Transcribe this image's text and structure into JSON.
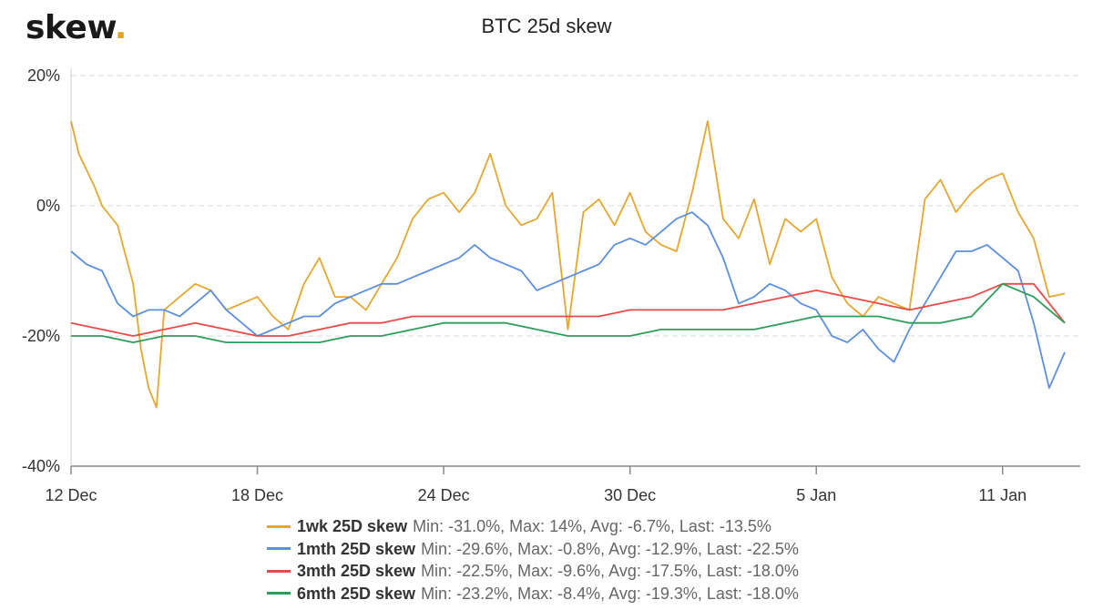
{
  "logo": {
    "text": "skew",
    "dot": "."
  },
  "chart_data": {
    "type": "line",
    "title": "BTC 25d skew",
    "xlabel": "",
    "ylabel": "",
    "ylim": [
      -40,
      20
    ],
    "yticks": [
      20,
      0,
      -20,
      -40
    ],
    "ytick_labels": [
      "20%",
      "0%",
      "-20%",
      "-40%"
    ],
    "x_start": "2019-12-12",
    "x_end": "2020-01-13",
    "xticks": [
      "2019-12-12",
      "2019-12-18",
      "2019-12-24",
      "2019-12-30",
      "2020-01-05",
      "2020-01-11"
    ],
    "xtick_labels": [
      "12 Dec",
      "18 Dec",
      "24 Dec",
      "30 Dec",
      "5 Jan",
      "11 Jan"
    ],
    "grid": "horizontal dashed",
    "legend_position": "bottom",
    "series": [
      {
        "name": "1wk 25D skew",
        "color": "#e5a72e",
        "stats": "Min: -31.0%, Max: 14%, Avg: -6.7%, Last: -13.5%",
        "x": [
          "2019-12-12",
          "2019-12-12T06",
          "2019-12-12T18",
          "2019-12-13",
          "2019-12-13T12",
          "2019-12-14",
          "2019-12-14T06",
          "2019-12-14T12",
          "2019-12-14T18",
          "2019-12-15",
          "2019-12-15T12",
          "2019-12-16",
          "2019-12-16T12",
          "2019-12-17",
          "2019-12-17T12",
          "2019-12-18",
          "2019-12-18T12",
          "2019-12-19",
          "2019-12-19T12",
          "2019-12-20",
          "2019-12-20T12",
          "2019-12-21",
          "2019-12-21T12",
          "2019-12-22",
          "2019-12-22T12",
          "2019-12-23",
          "2019-12-23T12",
          "2019-12-24",
          "2019-12-24T12",
          "2019-12-25",
          "2019-12-25T12",
          "2019-12-26",
          "2019-12-26T12",
          "2019-12-27",
          "2019-12-27T12",
          "2019-12-28",
          "2019-12-28T12",
          "2019-12-29",
          "2019-12-29T12",
          "2019-12-30",
          "2019-12-30T12",
          "2019-12-31",
          "2019-12-31T12",
          "2020-01-01",
          "2020-01-01T12",
          "2020-01-02",
          "2020-01-02T12",
          "2020-01-03",
          "2020-01-03T12",
          "2020-01-04",
          "2020-01-04T12",
          "2020-01-05",
          "2020-01-05T12",
          "2020-01-06",
          "2020-01-06T12",
          "2020-01-07",
          "2020-01-07T12",
          "2020-01-08",
          "2020-01-08T12",
          "2020-01-09",
          "2020-01-09T12",
          "2020-01-10",
          "2020-01-10T12",
          "2020-01-11",
          "2020-01-11T12",
          "2020-01-12",
          "2020-01-12T12",
          "2020-01-13"
        ],
        "values": [
          13,
          8,
          3,
          0,
          -3,
          -12,
          -22,
          -28,
          -31,
          -16,
          -14,
          -12,
          -13,
          -16,
          -15,
          -14,
          -17,
          -19,
          -12,
          -8,
          -14,
          -14,
          -16,
          -12,
          -8,
          -2,
          1,
          2,
          -1,
          2,
          8,
          0,
          -3,
          -2,
          2,
          -19,
          -1,
          1,
          -3,
          2,
          -4,
          -6,
          -7,
          2,
          13,
          -2,
          -5,
          1,
          -9,
          -2,
          -4,
          -2,
          -11,
          -15,
          -17,
          -14,
          -15,
          -16,
          1,
          4,
          -1,
          2,
          4,
          5,
          -1,
          -5,
          -14,
          -13.5
        ]
      },
      {
        "name": "1mth 25D skew",
        "color": "#5b8fe0",
        "stats": "Min: -29.6%, Max: -0.8%, Avg: -12.9%, Last: -22.5%",
        "x": [
          "2019-12-12",
          "2019-12-12T12",
          "2019-12-13",
          "2019-12-13T12",
          "2019-12-14",
          "2019-12-14T12",
          "2019-12-15",
          "2019-12-15T12",
          "2019-12-16",
          "2019-12-16T12",
          "2019-12-17",
          "2019-12-17T12",
          "2019-12-18",
          "2019-12-18T12",
          "2019-12-19",
          "2019-12-19T12",
          "2019-12-20",
          "2019-12-20T12",
          "2019-12-21",
          "2019-12-21T12",
          "2019-12-22",
          "2019-12-22T12",
          "2019-12-23",
          "2019-12-23T12",
          "2019-12-24",
          "2019-12-24T12",
          "2019-12-25",
          "2019-12-25T12",
          "2019-12-26",
          "2019-12-26T12",
          "2019-12-27",
          "2019-12-27T12",
          "2019-12-28",
          "2019-12-28T12",
          "2019-12-29",
          "2019-12-29T12",
          "2019-12-30",
          "2019-12-30T12",
          "2019-12-31",
          "2019-12-31T12",
          "2020-01-01",
          "2020-01-01T12",
          "2020-01-02",
          "2020-01-02T12",
          "2020-01-03",
          "2020-01-03T12",
          "2020-01-04",
          "2020-01-04T12",
          "2020-01-05",
          "2020-01-05T12",
          "2020-01-06",
          "2020-01-06T12",
          "2020-01-07",
          "2020-01-07T12",
          "2020-01-08",
          "2020-01-08T12",
          "2020-01-09",
          "2020-01-09T12",
          "2020-01-10",
          "2020-01-10T12",
          "2020-01-11",
          "2020-01-11T12",
          "2020-01-12",
          "2020-01-12T12",
          "2020-01-13"
        ],
        "values": [
          -7,
          -9,
          -10,
          -15,
          -17,
          -16,
          -16,
          -17,
          -15,
          -13,
          -16,
          -18,
          -20,
          -19,
          -18,
          -17,
          -17,
          -15,
          -14,
          -13,
          -12,
          -12,
          -11,
          -10,
          -9,
          -8,
          -6,
          -8,
          -9,
          -10,
          -13,
          -12,
          -11,
          -10,
          -9,
          -6,
          -5,
          -6,
          -4,
          -2,
          -1,
          -3,
          -8,
          -15,
          -14,
          -12,
          -13,
          -15,
          -16,
          -20,
          -21,
          -19,
          -22,
          -24,
          -19,
          -15,
          -11,
          -7,
          -7,
          -6,
          -8,
          -10,
          -18,
          -28,
          -22.5
        ]
      },
      {
        "name": "3mth 25D skew",
        "color": "#e84a4a",
        "stats": "Min: -22.5%, Max: -9.6%, Avg: -17.5%, Last: -18.0%",
        "x": [
          "2019-12-12",
          "2019-12-13",
          "2019-12-14",
          "2019-12-15",
          "2019-12-16",
          "2019-12-17",
          "2019-12-18",
          "2019-12-19",
          "2019-12-20",
          "2019-12-21",
          "2019-12-22",
          "2019-12-23",
          "2019-12-24",
          "2019-12-25",
          "2019-12-26",
          "2019-12-27",
          "2019-12-28",
          "2019-12-29",
          "2019-12-30",
          "2019-12-31",
          "2020-01-01",
          "2020-01-02",
          "2020-01-03",
          "2020-01-04",
          "2020-01-05",
          "2020-01-06",
          "2020-01-07",
          "2020-01-08",
          "2020-01-09",
          "2020-01-10",
          "2020-01-11",
          "2020-01-12",
          "2020-01-13"
        ],
        "values": [
          -18,
          -19,
          -20,
          -19,
          -18,
          -19,
          -20,
          -20,
          -19,
          -18,
          -18,
          -17,
          -17,
          -17,
          -17,
          -17,
          -17,
          -17,
          -16,
          -16,
          -16,
          -16,
          -15,
          -14,
          -13,
          -14,
          -15,
          -16,
          -15,
          -14,
          -12,
          -12,
          -18.0
        ]
      },
      {
        "name": "6mth 25D skew",
        "color": "#2d9e5a",
        "stats": "Min: -23.2%, Max: -8.4%, Avg: -19.3%, Last: -18.0%",
        "x": [
          "2019-12-12",
          "2019-12-13",
          "2019-12-14",
          "2019-12-15",
          "2019-12-16",
          "2019-12-17",
          "2019-12-18",
          "2019-12-19",
          "2019-12-20",
          "2019-12-21",
          "2019-12-22",
          "2019-12-23",
          "2019-12-24",
          "2019-12-25",
          "2019-12-26",
          "2019-12-27",
          "2019-12-28",
          "2019-12-29",
          "2019-12-30",
          "2019-12-31",
          "2020-01-01",
          "2020-01-02",
          "2020-01-03",
          "2020-01-04",
          "2020-01-05",
          "2020-01-06",
          "2020-01-07",
          "2020-01-08",
          "2020-01-09",
          "2020-01-10",
          "2020-01-11",
          "2020-01-12",
          "2020-01-13"
        ],
        "values": [
          -20,
          -20,
          -21,
          -20,
          -20,
          -21,
          -21,
          -21,
          -21,
          -20,
          -20,
          -19,
          -18,
          -18,
          -18,
          -19,
          -20,
          -20,
          -20,
          -19,
          -19,
          -19,
          -19,
          -18,
          -17,
          -17,
          -17,
          -18,
          -18,
          -17,
          -12,
          -14,
          -18.0
        ]
      }
    ]
  }
}
